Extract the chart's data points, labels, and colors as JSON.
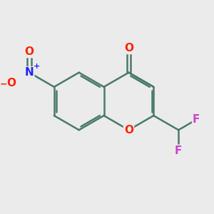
{
  "bg_color": "#ebebeb",
  "bond_color": "#4a7a6a",
  "bond_width": 1.8,
  "atom_colors": {
    "O": "#ff2200",
    "N": "#2222ff",
    "F": "#cc44cc"
  },
  "font_size": 11,
  "xlim": [
    -3.0,
    3.5
  ],
  "ylim": [
    -2.8,
    2.4
  ]
}
